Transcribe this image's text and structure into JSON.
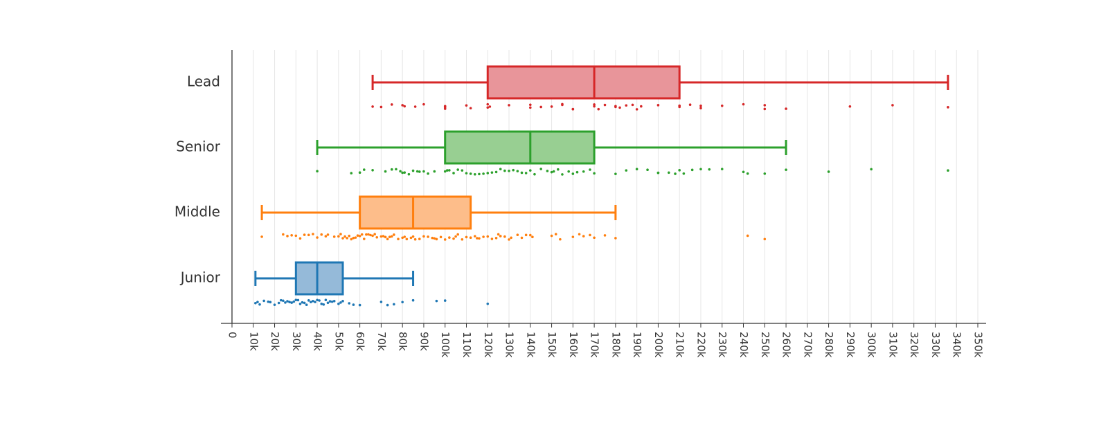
{
  "chart_data": {
    "type": "box",
    "orientation": "horizontal",
    "title": "",
    "xlabel": "",
    "ylabel": "",
    "xlim": [
      0,
      350000
    ],
    "x_tick_values": [
      0,
      10000,
      20000,
      30000,
      40000,
      50000,
      60000,
      70000,
      80000,
      90000,
      100000,
      110000,
      120000,
      130000,
      140000,
      150000,
      160000,
      170000,
      180000,
      190000,
      200000,
      210000,
      220000,
      230000,
      240000,
      250000,
      260000,
      270000,
      280000,
      290000,
      300000,
      310000,
      320000,
      330000,
      340000,
      350000
    ],
    "x_tick_labels": [
      "0",
      "10k",
      "20k",
      "30k",
      "40k",
      "50k",
      "60k",
      "70k",
      "80k",
      "90k",
      "100k",
      "110k",
      "120k",
      "130k",
      "140k",
      "150k",
      "160k",
      "170k",
      "180k",
      "190k",
      "200k",
      "210k",
      "220k",
      "230k",
      "240k",
      "250k",
      "260k",
      "270k",
      "280k",
      "290k",
      "300k",
      "310k",
      "320k",
      "330k",
      "340k",
      "350k"
    ],
    "grid": true,
    "legend": "none",
    "categories": [
      "Lead",
      "Senior",
      "Middle",
      "Junior"
    ],
    "series": [
      {
        "name": "Lead",
        "color": "#d62728",
        "fill": "#e8959a",
        "whisker_low": 66000,
        "q1": 120000,
        "median": 170000,
        "q3": 210000,
        "whisker_high": 336000,
        "points": [
          66000,
          70000,
          75000,
          80000,
          81000,
          86000,
          90000,
          100000,
          100000,
          100000,
          110000,
          112000,
          120000,
          120000,
          121000,
          130000,
          140000,
          140000,
          145000,
          150000,
          155000,
          155000,
          160000,
          160000,
          170000,
          170000,
          172000,
          175000,
          180000,
          180000,
          182000,
          185000,
          188000,
          190000,
          192000,
          200000,
          210000,
          210000,
          215000,
          220000,
          220000,
          230000,
          240000,
          250000,
          250000,
          260000,
          290000,
          310000,
          336000
        ]
      },
      {
        "name": "Senior",
        "color": "#2ca02c",
        "fill": "#98cf92",
        "whisker_low": 40000,
        "q1": 100000,
        "median": 140000,
        "q3": 170000,
        "whisker_high": 260000,
        "points": [
          40000,
          56000,
          60000,
          62000,
          66000,
          72000,
          75000,
          77000,
          79000,
          80000,
          81000,
          83000,
          85000,
          87000,
          88000,
          90000,
          92000,
          95000,
          100000,
          101000,
          102000,
          104000,
          106000,
          108000,
          110000,
          112000,
          114000,
          116000,
          118000,
          120000,
          122000,
          124000,
          126000,
          128000,
          130000,
          132000,
          134000,
          136000,
          138000,
          140000,
          142000,
          145000,
          148000,
          150000,
          151000,
          153000,
          155000,
          158000,
          160000,
          162000,
          165000,
          168000,
          170000,
          180000,
          185000,
          190000,
          195000,
          200000,
          200000,
          205000,
          208000,
          210000,
          212000,
          216000,
          220000,
          224000,
          230000,
          240000,
          242000,
          250000,
          260000,
          280000,
          300000,
          336000
        ]
      },
      {
        "name": "Middle",
        "color": "#ff7f0e",
        "fill": "#fdbd8a",
        "whisker_low": 14000,
        "q1": 60000,
        "median": 85000,
        "q3": 112000,
        "whisker_high": 180000,
        "points": [
          14000,
          24000,
          26000,
          28000,
          30000,
          32000,
          34000,
          36000,
          38000,
          40000,
          42000,
          44000,
          45000,
          48000,
          50000,
          51000,
          52000,
          53000,
          54000,
          55000,
          56000,
          57000,
          58000,
          59000,
          60000,
          61000,
          62000,
          63000,
          64000,
          65000,
          66000,
          67000,
          68000,
          70000,
          71000,
          72000,
          73000,
          74000,
          75000,
          76000,
          78000,
          80000,
          81000,
          82000,
          84000,
          85000,
          86000,
          88000,
          90000,
          92000,
          94000,
          95000,
          96000,
          98000,
          100000,
          102000,
          104000,
          105000,
          106000,
          108000,
          110000,
          112000,
          114000,
          115000,
          116000,
          118000,
          120000,
          122000,
          124000,
          125000,
          126000,
          128000,
          130000,
          131000,
          134000,
          136000,
          138000,
          140000,
          141000,
          150000,
          152000,
          154000,
          160000,
          163000,
          165000,
          168000,
          170000,
          175000,
          180000,
          242000,
          250000
        ]
      },
      {
        "name": "Junior",
        "color": "#1f77b4",
        "fill": "#95bad9",
        "whisker_low": 11000,
        "q1": 30000,
        "median": 40000,
        "q3": 52000,
        "whisker_high": 85000,
        "points": [
          11000,
          12000,
          13000,
          15000,
          17000,
          18000,
          20000,
          22000,
          23000,
          24000,
          25000,
          26000,
          27000,
          28000,
          29000,
          30000,
          31000,
          32000,
          33000,
          34000,
          35000,
          36000,
          37000,
          38000,
          39000,
          40000,
          41000,
          42000,
          43000,
          44000,
          45000,
          46000,
          47000,
          48000,
          50000,
          51000,
          52000,
          55000,
          57000,
          60000,
          70000,
          73000,
          76000,
          80000,
          85000,
          96000,
          100000,
          120000
        ]
      }
    ]
  }
}
